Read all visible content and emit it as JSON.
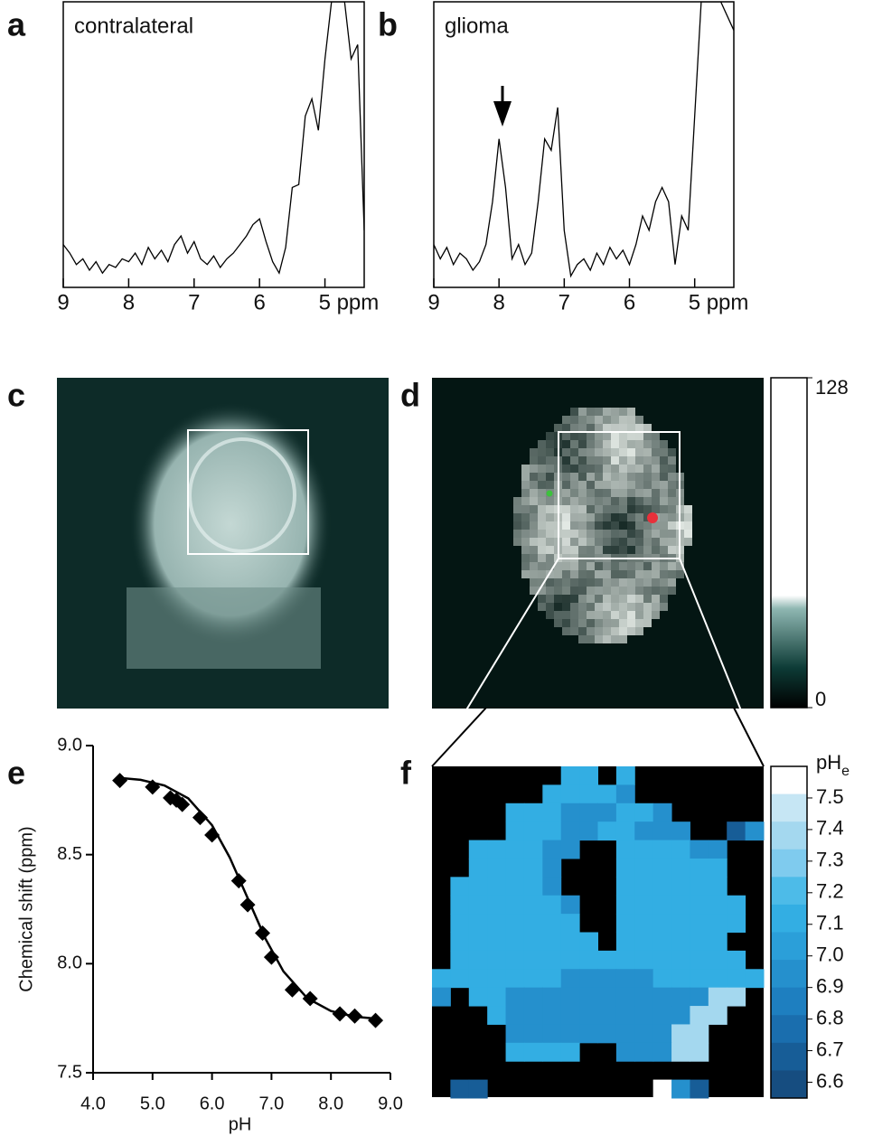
{
  "chart_data": [
    {
      "type": "line",
      "panel": "a",
      "annotation": "contralateral",
      "x": [
        9.0,
        8.9,
        8.8,
        8.7,
        8.6,
        8.5,
        8.4,
        8.3,
        8.2,
        8.1,
        8.0,
        7.9,
        7.8,
        7.7,
        7.6,
        7.5,
        7.4,
        7.3,
        7.2,
        7.1,
        7.0,
        6.9,
        6.8,
        6.7,
        6.6,
        6.5,
        6.4,
        6.3,
        6.2,
        6.1,
        6.0,
        5.9,
        5.8,
        5.7,
        5.6,
        5.5,
        5.4,
        5.3,
        5.2,
        5.1,
        5.0,
        4.9,
        4.8,
        4.7,
        4.6,
        4.5,
        4.4
      ],
      "values": [
        15,
        12,
        8,
        10,
        6,
        9,
        5,
        8,
        7,
        10,
        9,
        12,
        8,
        14,
        10,
        13,
        9,
        15,
        18,
        12,
        16,
        10,
        8,
        11,
        7,
        10,
        12,
        15,
        18,
        22,
        24,
        16,
        9,
        5,
        14,
        35,
        36,
        60,
        66,
        55,
        80,
        100,
        100,
        100,
        80,
        85,
        20
      ],
      "xlim": [
        9,
        4.4
      ],
      "xticks": [
        9,
        8,
        7,
        6,
        {
          "value": 5,
          "label": "5 ppm"
        }
      ],
      "ylim": [
        0,
        100
      ],
      "color": "#000000"
    },
    {
      "type": "line",
      "panel": "b",
      "annotation": "glioma",
      "x": [
        9.0,
        8.9,
        8.8,
        8.7,
        8.6,
        8.5,
        8.4,
        8.3,
        8.2,
        8.1,
        8.0,
        7.9,
        7.8,
        7.7,
        7.6,
        7.5,
        7.4,
        7.3,
        7.2,
        7.1,
        7.0,
        6.9,
        6.8,
        6.7,
        6.6,
        6.5,
        6.4,
        6.3,
        6.2,
        6.1,
        6.0,
        5.9,
        5.8,
        5.7,
        5.6,
        5.5,
        5.4,
        5.3,
        5.2,
        5.1,
        5.0,
        4.9,
        4.8,
        4.7,
        4.6,
        4.5,
        4.4
      ],
      "values": [
        15,
        10,
        14,
        8,
        12,
        10,
        6,
        9,
        15,
        30,
        52,
        35,
        10,
        15,
        8,
        12,
        30,
        52,
        48,
        63,
        20,
        4,
        8,
        10,
        6,
        12,
        8,
        14,
        10,
        13,
        8,
        15,
        25,
        20,
        30,
        35,
        30,
        8,
        25,
        20,
        60,
        100,
        100,
        100,
        100,
        95,
        90
      ],
      "xlim": [
        9,
        4.4
      ],
      "xticks": [
        9,
        8,
        7,
        6,
        {
          "value": 5,
          "label": "5 ppm"
        }
      ],
      "ylim": [
        0,
        100
      ],
      "color": "#000000"
    },
    {
      "type": "scatter",
      "panel": "e",
      "xlabel": "pH",
      "ylabel": "Chemical shift (ppm)",
      "xlim": [
        4.0,
        9.0
      ],
      "xticks": [
        {
          "value": 4,
          "label": "4.0"
        },
        {
          "value": 5,
          "label": "5.0"
        },
        {
          "value": 6,
          "label": "6.0"
        },
        {
          "value": 7,
          "label": "7.0"
        },
        {
          "value": 8,
          "label": "8.0"
        },
        {
          "value": 9,
          "label": "9.0"
        }
      ],
      "ylim": [
        7.5,
        9.0
      ],
      "yticks": [
        7.5,
        {
          "value": 8,
          "label": "8.0"
        },
        8.5,
        {
          "value": 9,
          "label": "9.0"
        }
      ],
      "series": [
        {
          "style": "markers",
          "color": "#000000",
          "x": [
            4.45,
            5.0,
            5.3,
            5.4,
            5.5,
            5.8,
            6.0,
            6.45,
            6.6,
            6.85,
            7.0,
            7.35,
            7.65,
            8.15,
            8.4,
            8.75
          ],
          "values": [
            8.84,
            8.81,
            8.76,
            8.75,
            8.73,
            8.67,
            8.59,
            8.38,
            8.27,
            8.14,
            8.03,
            7.88,
            7.84,
            7.77,
            7.76,
            7.74
          ]
        },
        {
          "style": "line",
          "color": "#000000",
          "x": [
            4.4,
            4.8,
            5.2,
            5.6,
            6.0,
            6.3,
            6.6,
            6.9,
            7.2,
            7.6,
            8.0,
            8.4,
            8.8
          ],
          "values": [
            8.853,
            8.843,
            8.817,
            8.758,
            8.635,
            8.486,
            8.3,
            8.114,
            7.965,
            7.842,
            7.783,
            7.757,
            7.747
          ]
        }
      ]
    }
  ],
  "images": [
    {
      "panel": "c"
    },
    {
      "panel": "d",
      "colorbar": {
        "range": [
          0,
          128
        ],
        "ticks": [
          0,
          128
        ]
      }
    },
    {
      "panel": "f",
      "colorbar": {
        "title": "pH",
        "title_subscript": "e",
        "range": [
          6.55,
          7.6
        ],
        "ticks": [
          7.5,
          7.4,
          7.3,
          7.2,
          7.1,
          {
            "value": 7,
            "label": "7.0"
          },
          6.9,
          6.8,
          6.7,
          6.6
        ],
        "colors": [
          "#ffffff",
          "#c6e6f4",
          "#a4d8ef",
          "#7fcbee",
          "#4dbbe8",
          "#33aee3",
          "#2b9fd9",
          "#2590cd",
          "#1e7fc0",
          "#1a6eae",
          "#175d97",
          "#164d80"
        ]
      }
    }
  ]
}
